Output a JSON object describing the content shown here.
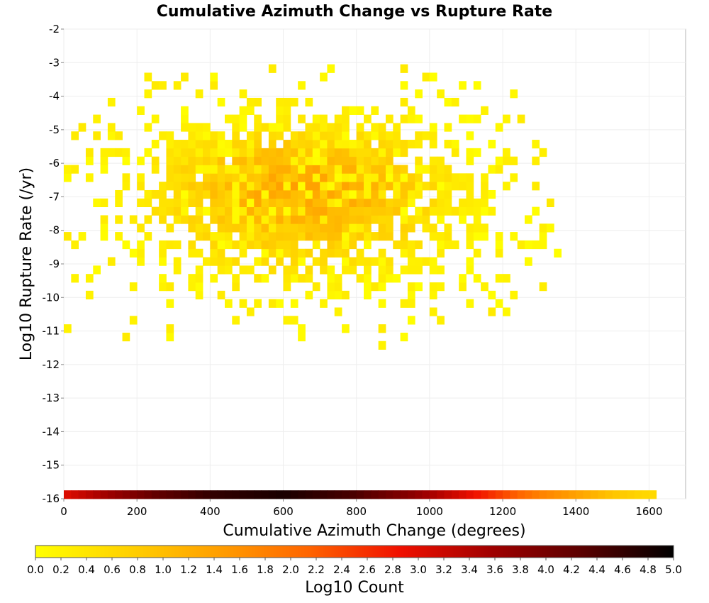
{
  "chart_data": {
    "type": "heatmap",
    "title": "Cumulative Azimuth Change vs Rupture Rate",
    "xlabel": "Cumulative Azimuth Change (degrees)",
    "ylabel": "Log10 Rupture Rate (/yr)",
    "xlim": [
      0,
      1700
    ],
    "ylim": [
      -16,
      -2
    ],
    "x_ticks": [
      "0",
      "200",
      "400",
      "600",
      "800",
      "1000",
      "1200",
      "1400",
      "1600"
    ],
    "y_ticks": [
      "-2",
      "-3",
      "-4",
      "-5",
      "-6",
      "-7",
      "-8",
      "-9",
      "-10",
      "-11",
      "-12",
      "-13",
      "-14",
      "-15",
      "-16"
    ],
    "x_bin_width": 20,
    "y_bin_height": 0.25,
    "color_scale": {
      "label": "Log10 Count",
      "range": [
        0.0,
        5.0
      ],
      "ticks": [
        "0.0",
        "0.2",
        "0.4",
        "0.6",
        "0.8",
        "1.0",
        "1.2",
        "1.4",
        "1.6",
        "1.8",
        "2.0",
        "2.2",
        "2.4",
        "2.6",
        "2.8",
        "3.0",
        "3.2",
        "3.4",
        "3.6",
        "3.8",
        "4.0",
        "4.2",
        "4.4",
        "4.6",
        "4.8",
        "5.0"
      ],
      "colors": [
        "#ffff00",
        "#ffd200",
        "#ff9f00",
        "#ff6400",
        "#f01000",
        "#a00000",
        "#5a0000",
        "#000000"
      ]
    },
    "cluster_summary": {
      "center_x": 650,
      "center_log_rate": -6.7,
      "x_extent": [
        0,
        1360
      ],
      "log_rate_extent": [
        -11.8,
        -3.3
      ],
      "peak_log_count": 1.5
    },
    "bottom_row": {
      "log_rate": -16,
      "x_extent": [
        0,
        1620
      ],
      "log_count_profile": [
        {
          "x": 0,
          "v": 3.0
        },
        {
          "x": 100,
          "v": 3.5
        },
        {
          "x": 250,
          "v": 4.2
        },
        {
          "x": 400,
          "v": 4.6
        },
        {
          "x": 600,
          "v": 4.8
        },
        {
          "x": 800,
          "v": 4.4
        },
        {
          "x": 950,
          "v": 3.8
        },
        {
          "x": 1100,
          "v": 3.0
        },
        {
          "x": 1200,
          "v": 2.4
        },
        {
          "x": 1300,
          "v": 1.8
        },
        {
          "x": 1400,
          "v": 1.4
        },
        {
          "x": 1500,
          "v": 0.9
        },
        {
          "x": 1600,
          "v": 0.6
        }
      ]
    }
  }
}
